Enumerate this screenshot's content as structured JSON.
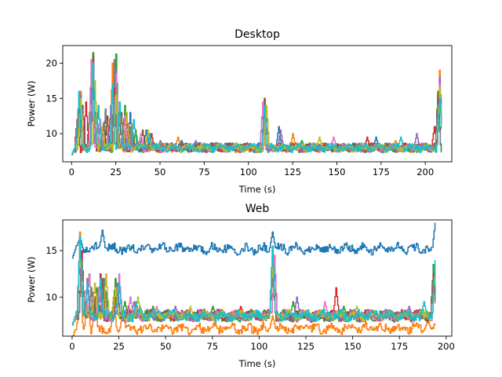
{
  "chart_data": [
    {
      "type": "line",
      "title": "Desktop",
      "xlabel": "Time (s)",
      "ylabel": "Power (W)",
      "xlim": [
        -5,
        215
      ],
      "ylim": [
        6.0,
        22.5
      ],
      "xticks": [
        0,
        25,
        50,
        75,
        100,
        125,
        150,
        175,
        200
      ],
      "yticks": [
        10,
        15,
        20
      ],
      "grid": false,
      "palette": [
        "#1f77b4",
        "#ff7f0e",
        "#2ca02c",
        "#d62728",
        "#9467bd",
        "#8c564b",
        "#e377c2",
        "#7f7f7f",
        "#bcbd22",
        "#17becf"
      ],
      "x_end": 209,
      "series": [
        {
          "peaks": [
            [
              4,
              12.5
            ],
            [
              6,
              14.0
            ],
            [
              12,
              19.5
            ],
            [
              16,
              11.0
            ],
            [
              24,
              18.0
            ],
            [
              29,
              11.5
            ],
            [
              33,
              13.0
            ],
            [
              42,
              10.5
            ],
            [
              62,
              9.0
            ],
            [
              108,
              14.0
            ],
            [
              117,
              11.0
            ],
            [
              172,
              9.5
            ],
            [
              207,
              14.5
            ]
          ]
        },
        {
          "peaks": [
            [
              5,
              16.0
            ],
            [
              11,
              18.5
            ],
            [
              13,
              12.0
            ],
            [
              17,
              10.0
            ],
            [
              23,
              20.0
            ],
            [
              27,
              12.5
            ],
            [
              34,
              11.0
            ],
            [
              60,
              9.5
            ],
            [
              109,
              15.0
            ],
            [
              125,
              10.0
            ],
            [
              183,
              9.0
            ],
            [
              208,
              19.0
            ]
          ]
        },
        {
          "peaks": [
            [
              4,
              15.0
            ],
            [
              10,
              13.0
            ],
            [
              12,
              21.5
            ],
            [
              19,
              13.0
            ],
            [
              25,
              21.3
            ],
            [
              30,
              14.0
            ],
            [
              36,
              10.5
            ],
            [
              109,
              14.5
            ],
            [
              130,
              9.0
            ],
            [
              207,
              16.0
            ]
          ]
        },
        {
          "peaks": [
            [
              3,
              12.0
            ],
            [
              8,
              14.5
            ],
            [
              12,
              20.0
            ],
            [
              20,
              12.5
            ],
            [
              24,
              17.5
            ],
            [
              31,
              12.0
            ],
            [
              45,
              10.0
            ],
            [
              110,
              13.5
            ],
            [
              167,
              9.5
            ],
            [
              205,
              11.0
            ],
            [
              208,
              17.5
            ]
          ]
        },
        {
          "peaks": [
            [
              5,
              15.5
            ],
            [
              11,
              17.0
            ],
            [
              14,
              13.0
            ],
            [
              22,
              14.0
            ],
            [
              25,
              19.0
            ],
            [
              32,
              11.5
            ],
            [
              70,
              9.0
            ],
            [
              108,
              14.0
            ],
            [
              118,
              10.5
            ],
            [
              195,
              10.0
            ],
            [
              208,
              18.0
            ]
          ]
        },
        {
          "peaks": [
            [
              4,
              13.0
            ],
            [
              12,
              21.0
            ],
            [
              18,
              11.5
            ],
            [
              24,
              16.0
            ],
            [
              28,
              13.0
            ],
            [
              40,
              10.5
            ],
            [
              109,
              15.0
            ],
            [
              207,
              15.5
            ]
          ]
        },
        {
          "peaks": [
            [
              5,
              14.0
            ],
            [
              11,
              20.5
            ],
            [
              16,
              12.0
            ],
            [
              25,
              18.5
            ],
            [
              30,
              12.5
            ],
            [
              39,
              10.0
            ],
            [
              108,
              14.5
            ],
            [
              148,
              9.5
            ],
            [
              208,
              17.0
            ]
          ]
        },
        {
          "peaks": [
            [
              4,
              12.0
            ],
            [
              12,
              18.0
            ],
            [
              19,
              13.5
            ],
            [
              24,
              20.5
            ],
            [
              33,
              11.0
            ],
            [
              50,
              9.0
            ],
            [
              109,
              13.0
            ],
            [
              207,
              14.0
            ]
          ]
        },
        {
          "peaks": [
            [
              5,
              15.0
            ],
            [
              13,
              17.5
            ],
            [
              17,
              11.0
            ],
            [
              25,
              15.5
            ],
            [
              31,
              13.0
            ],
            [
              43,
              10.5
            ],
            [
              110,
              14.0
            ],
            [
              140,
              9.5
            ],
            [
              208,
              16.5
            ]
          ]
        },
        {
          "peaks": [
            [
              4,
              16.0
            ],
            [
              12,
              20.0
            ],
            [
              15,
              14.0
            ],
            [
              23,
              17.0
            ],
            [
              27,
              14.5
            ],
            [
              35,
              12.0
            ],
            [
              44,
              10.0
            ],
            [
              109,
              14.0
            ],
            [
              186,
              9.5
            ],
            [
              208,
              15.0
            ]
          ]
        }
      ]
    },
    {
      "type": "line",
      "title": "Web",
      "xlabel": "Time (s)",
      "ylabel": "Power (W)",
      "xlim": [
        -5,
        203
      ],
      "ylim": [
        5.8,
        18.3
      ],
      "xticks": [
        0,
        25,
        50,
        75,
        100,
        125,
        150,
        175,
        200
      ],
      "yticks": [
        10,
        15
      ],
      "grid": false,
      "palette": [
        "#1f77b4",
        "#ff7f0e",
        "#2ca02c",
        "#d62728",
        "#9467bd",
        "#8c564b",
        "#e377c2",
        "#7f7f7f",
        "#bcbd22",
        "#17becf"
      ],
      "x_end": 194,
      "series": [
        {
          "peaks": [
            [
              4,
              16.5
            ],
            [
              7,
              11.5
            ],
            [
              9,
              13.0
            ],
            [
              12,
              11.5
            ],
            [
              16,
              17.2
            ],
            [
              22,
              14.5
            ],
            [
              107,
              17.0
            ],
            [
              194,
              18.0
            ]
          ]
        },
        {
          "peaks": [
            [
              4,
              17.0
            ],
            [
              8,
              12.0
            ],
            [
              12,
              10.0
            ],
            [
              22,
              10.0
            ],
            [
              27,
              8.5
            ],
            [
              50,
              7.0
            ],
            [
              75,
              6.8
            ],
            [
              107,
              8.0
            ],
            [
              125,
              7.0
            ],
            [
              150,
              6.8
            ],
            [
              183,
              7.0
            ],
            [
              190,
              7.5
            ]
          ]
        },
        {
          "peaks": [
            [
              4,
              16.0
            ],
            [
              9,
              12.5
            ],
            [
              13,
              11.0
            ],
            [
              18,
              10.5
            ],
            [
              23,
              12.0
            ],
            [
              28,
              9.5
            ],
            [
              43,
              9.0
            ],
            [
              75,
              9.0
            ],
            [
              107,
              15.0
            ],
            [
              118,
              9.5
            ],
            [
              145,
              9.0
            ],
            [
              193,
              13.5
            ]
          ]
        },
        {
          "peaks": [
            [
              5,
              15.0
            ],
            [
              10,
              11.0
            ],
            [
              15,
              12.5
            ],
            [
              24,
              11.0
            ],
            [
              30,
              9.0
            ],
            [
              70,
              8.5
            ],
            [
              90,
              9.0
            ],
            [
              107,
              14.0
            ],
            [
              141,
              11.0
            ],
            [
              193,
              12.5
            ]
          ]
        },
        {
          "peaks": [
            [
              4,
              14.5
            ],
            [
              8,
              12.0
            ],
            [
              14,
              10.5
            ],
            [
              24,
              11.5
            ],
            [
              33,
              9.5
            ],
            [
              55,
              9.0
            ],
            [
              108,
              13.5
            ],
            [
              120,
              10.0
            ],
            [
              180,
              9.0
            ],
            [
              194,
              13.0
            ]
          ]
        },
        {
          "peaks": [
            [
              5,
              13.5
            ],
            [
              11,
              10.5
            ],
            [
              16,
              12.0
            ],
            [
              23,
              10.0
            ],
            [
              40,
              8.5
            ],
            [
              107,
              13.0
            ],
            [
              160,
              8.5
            ],
            [
              193,
              12.0
            ]
          ]
        },
        {
          "peaks": [
            [
              4,
              16.0
            ],
            [
              9,
              12.5
            ],
            [
              14,
              11.0
            ],
            [
              25,
              12.5
            ],
            [
              31,
              10.0
            ],
            [
              45,
              9.0
            ],
            [
              108,
              14.5
            ],
            [
              135,
              9.5
            ],
            [
              194,
              13.5
            ]
          ]
        },
        {
          "peaks": [
            [
              5,
              14.0
            ],
            [
              10,
              11.0
            ],
            [
              17,
              12.0
            ],
            [
              24,
              10.5
            ],
            [
              36,
              9.0
            ],
            [
              80,
              8.5
            ],
            [
              107,
              12.5
            ],
            [
              170,
              8.5
            ],
            [
              193,
              11.5
            ]
          ]
        },
        {
          "peaks": [
            [
              4,
              15.5
            ],
            [
              12,
              11.5
            ],
            [
              18,
              12.5
            ],
            [
              23,
              11.0
            ],
            [
              35,
              10.0
            ],
            [
              63,
              9.0
            ],
            [
              107,
              14.0
            ],
            [
              152,
              9.0
            ],
            [
              194,
              13.0
            ]
          ]
        },
        {
          "peaks": [
            [
              4,
              16.5
            ],
            [
              8,
              11.5
            ],
            [
              15,
              12.0
            ],
            [
              25,
              11.5
            ],
            [
              34,
              9.5
            ],
            [
              52,
              8.5
            ],
            [
              107,
              15.5
            ],
            [
              188,
              9.5
            ],
            [
              194,
              14.0
            ]
          ]
        }
      ]
    }
  ]
}
